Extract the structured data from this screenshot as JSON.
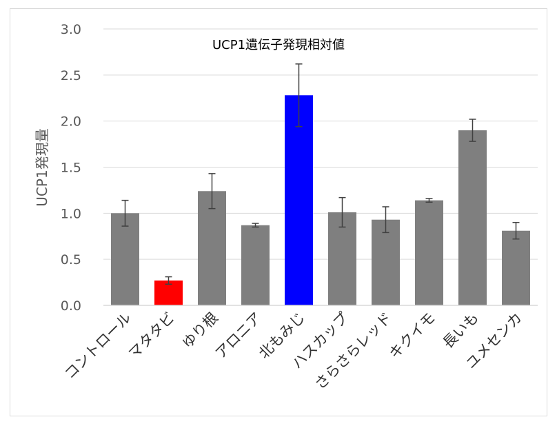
{
  "chart_data": {
    "type": "bar",
    "title": "UCP1遺伝子発現相対値",
    "ylabel": "UCP1発現量",
    "xlabel": "",
    "ylim": [
      0,
      3.0
    ],
    "yticks": [
      "0.0",
      "0.5",
      "1.0",
      "1.5",
      "2.0",
      "2.5",
      "3.0"
    ],
    "grid": true,
    "legend": "none",
    "categories": [
      "コントロール",
      "マタタビ",
      "ゆり根",
      "アロニア",
      "北もみじ",
      "ハスカップ",
      "さらさらレッド",
      "キクイモ",
      "長いも",
      "ユメセンカ"
    ],
    "values": [
      1.0,
      0.27,
      1.24,
      0.87,
      2.28,
      1.01,
      0.93,
      1.14,
      1.9,
      0.81
    ],
    "errors": [
      0.14,
      0.04,
      0.19,
      0.02,
      0.34,
      0.16,
      0.14,
      0.02,
      0.12,
      0.09
    ],
    "colors": [
      "#7f7f7f",
      "#ff0000",
      "#7f7f7f",
      "#7f7f7f",
      "#0000ff",
      "#7f7f7f",
      "#7f7f7f",
      "#7f7f7f",
      "#7f7f7f",
      "#7f7f7f"
    ]
  }
}
